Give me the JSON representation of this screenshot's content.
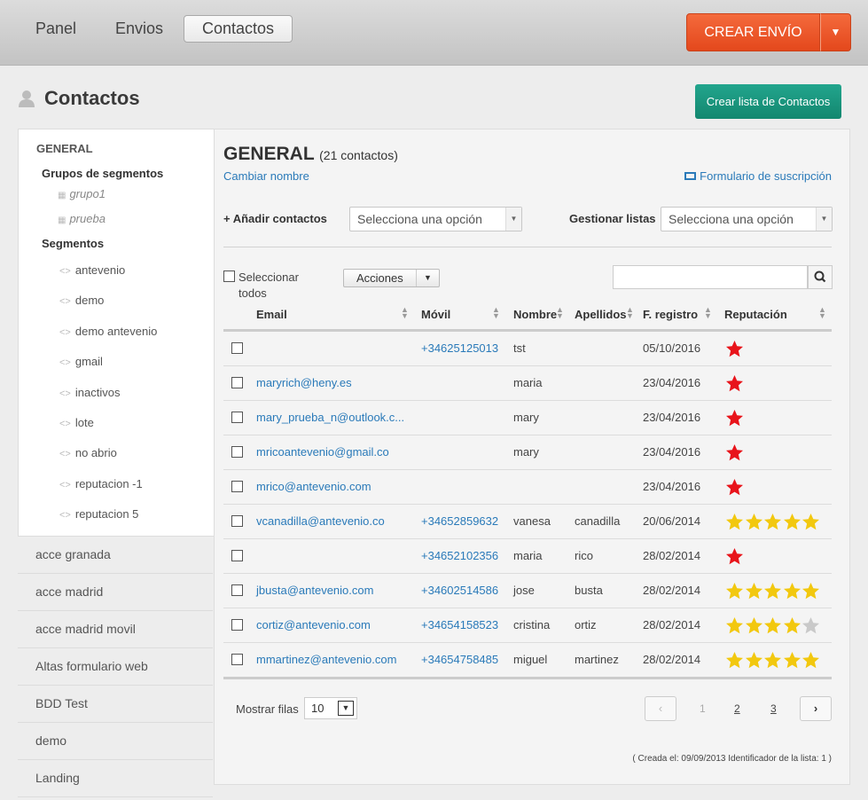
{
  "topnav": {
    "tabs": [
      "Panel",
      "Envios",
      "Contactos"
    ],
    "create_label": "CREAR ENVÍO"
  },
  "page": {
    "title": "Contactos",
    "create_list_label": "Crear lista de Contactos"
  },
  "sidebar": {
    "general": "GENERAL",
    "groups_heading": "Grupos de segmentos",
    "groups": [
      "grupo1",
      "prueba"
    ],
    "segments_heading": "Segmentos",
    "segments": [
      "antevenio",
      "demo",
      "demo antevenio",
      "gmail",
      "inactivos",
      "lote",
      "no abrio",
      "reputacion -1",
      "reputacion 5"
    ],
    "lists": [
      "acce granada",
      "acce madrid",
      "acce madrid movil",
      "Altas formulario web",
      "BDD Test",
      "demo",
      "Landing"
    ]
  },
  "main": {
    "title": "GENERAL",
    "count": "(21 contactos)",
    "rename": "Cambiar nombre",
    "subscription_form": "Formulario de suscripción",
    "add_contacts_label": "+ Añadir contactos",
    "add_contacts_placeholder": "Selecciona una opción",
    "manage_lists_label": "Gestionar listas",
    "manage_lists_placeholder": "Selecciona una opción",
    "select_all": "Seleccionar todos",
    "actions": "Acciones",
    "search_value": ""
  },
  "table": {
    "columns": [
      "Email",
      "Móvil",
      "Nombre",
      "Apellidos",
      "F. registro",
      "Reputación"
    ],
    "rows": [
      {
        "email": "",
        "mobile": "+34625125013",
        "name": "tst",
        "surname": "",
        "date": "05/10/2016",
        "stars": 1,
        "style": "red"
      },
      {
        "email": "maryrich@heny.es",
        "mobile": "",
        "name": "maria",
        "surname": "",
        "date": "23/04/2016",
        "stars": 1,
        "style": "red"
      },
      {
        "email": "mary_prueba_n@outlook.c...",
        "mobile": "",
        "name": "mary",
        "surname": "",
        "date": "23/04/2016",
        "stars": 1,
        "style": "red"
      },
      {
        "email": "mricoantevenio@gmail.co",
        "mobile": "",
        "name": "mary",
        "surname": "",
        "date": "23/04/2016",
        "stars": 1,
        "style": "red"
      },
      {
        "email": "mrico@antevenio.com",
        "mobile": "",
        "name": "",
        "surname": "",
        "date": "23/04/2016",
        "stars": 1,
        "style": "red"
      },
      {
        "email": "vcanadilla@antevenio.co",
        "mobile": "+34652859632",
        "name": "vanesa",
        "surname": "canadilla",
        "date": "20/06/2014",
        "stars": 5,
        "style": "gold"
      },
      {
        "email": "",
        "mobile": "+34652102356",
        "name": "maria",
        "surname": "rico",
        "date": "28/02/2014",
        "stars": 1,
        "style": "red"
      },
      {
        "email": "jbusta@antevenio.com",
        "mobile": "+34602514586",
        "name": "jose",
        "surname": "busta",
        "date": "28/02/2014",
        "stars": 5,
        "style": "gold"
      },
      {
        "email": "cortiz@antevenio.com",
        "mobile": "+34654158523",
        "name": "cristina",
        "surname": "ortiz",
        "date": "28/02/2014",
        "stars": 4,
        "style": "gold"
      },
      {
        "email": "mmartinez@antevenio.com",
        "mobile": "+34654758485",
        "name": "miguel",
        "surname": "martinez",
        "date": "28/02/2014",
        "stars": 5,
        "style": "gold"
      }
    ]
  },
  "footer": {
    "rows_label": "Mostrar filas",
    "rows_value": "10",
    "pages": [
      "1",
      "2",
      "3"
    ],
    "prev": "‹",
    "next": "›",
    "created": "( Creada el: 09/09/2013 Identificador de la lista: 1 )"
  },
  "colors": {
    "orange": "#e85426",
    "teal": "#179680",
    "link": "#2a7ab9",
    "star_red": "#e8141b",
    "star_gold": "#f2c80f",
    "star_empty": "#c9c9c9"
  }
}
